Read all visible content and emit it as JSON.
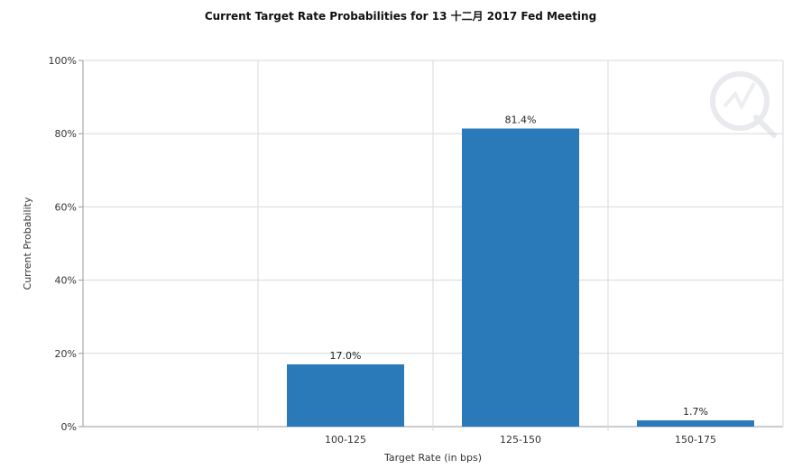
{
  "chart_data": {
    "type": "bar",
    "title": "Current Target Rate Probabilities for 13 十二月 2017 Fed Meeting",
    "xlabel": "Target Rate (in bps)",
    "ylabel": "Current Probability",
    "categories": [
      "100-125",
      "125-150",
      "150-175"
    ],
    "series": [
      {
        "values": [
          17.0,
          81.4,
          1.7
        ]
      }
    ],
    "data_labels": [
      "17.0%",
      "81.4%",
      "1.7%"
    ],
    "yticks": [
      "0%",
      "20%",
      "40%",
      "60%",
      "80%",
      "100%"
    ],
    "ylim": [
      0,
      100
    ],
    "grid": true,
    "legend": "none",
    "bar_color": "#2a7ab9"
  }
}
